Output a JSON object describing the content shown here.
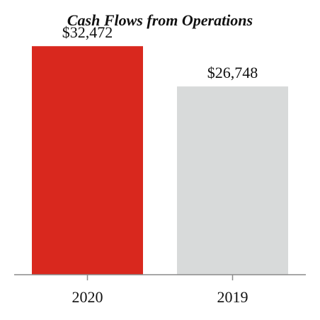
{
  "chart_data": {
    "type": "bar",
    "title": "Cash Flows from Operations",
    "categories": [
      "2020",
      "2019"
    ],
    "values": [
      32472,
      26748
    ],
    "value_labels": [
      "$32,472",
      "$26,748"
    ],
    "colors": [
      "#d9281e",
      "#d8dada"
    ],
    "axis_color": "#8a8a8a",
    "ylim": [
      0,
      33500
    ],
    "grid": false,
    "legend": "none"
  }
}
